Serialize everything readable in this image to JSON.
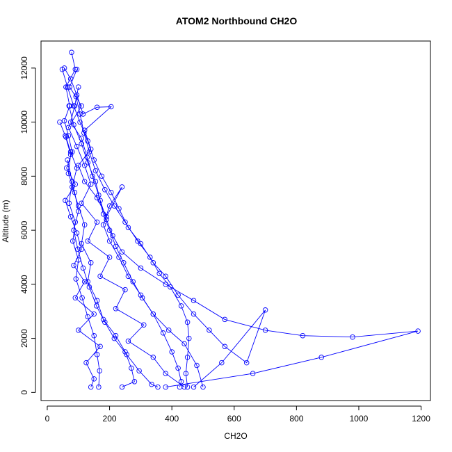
{
  "chart_data": {
    "type": "line",
    "title": "ATOM2 Northbound CH2O",
    "xlabel": "CH2O",
    "ylabel": "Altitude (m)",
    "xlim": [
      -20,
      1230
    ],
    "ylim": [
      -300,
      13000
    ],
    "xticks": [
      0,
      200,
      400,
      600,
      800,
      1000,
      1200
    ],
    "yticks": [
      0,
      2000,
      4000,
      6000,
      8000,
      10000,
      12000
    ],
    "grid": false,
    "legend": "none",
    "color": "#0000ff",
    "marker": "open-circle",
    "series": [
      {
        "values": [
          [
            78,
            12580
          ],
          [
            90,
            11950
          ],
          [
            60,
            11300
          ],
          [
            72,
            10600
          ],
          [
            55,
            10050
          ],
          [
            68,
            9500
          ],
          [
            80,
            8900
          ],
          [
            62,
            8300
          ],
          [
            90,
            7700
          ],
          [
            58,
            7100
          ],
          [
            75,
            6500
          ],
          [
            95,
            5900
          ],
          [
            110,
            5300
          ],
          [
            85,
            4700
          ],
          [
            120,
            4100
          ],
          [
            90,
            3500
          ],
          [
            150,
            2900
          ],
          [
            100,
            2300
          ],
          [
            170,
            1700
          ],
          [
            125,
            1100
          ],
          [
            150,
            500
          ],
          [
            140,
            200
          ]
        ]
      },
      {
        "values": [
          [
            95,
            11950
          ],
          [
            72,
            11300
          ],
          [
            110,
            10600
          ],
          [
            68,
            9800
          ],
          [
            95,
            9100
          ],
          [
            120,
            8400
          ],
          [
            140,
            7700
          ],
          [
            110,
            7000
          ],
          [
            160,
            6300
          ],
          [
            130,
            5600
          ],
          [
            200,
            5000
          ],
          [
            170,
            4300
          ],
          [
            250,
            3800
          ],
          [
            220,
            3100
          ],
          [
            310,
            2500
          ],
          [
            260,
            1900
          ],
          [
            340,
            1300
          ],
          [
            380,
            700
          ],
          [
            440,
            200
          ]
        ]
      },
      {
        "values": [
          [
            48,
            11950
          ],
          [
            65,
            11300
          ],
          [
            85,
            10600
          ],
          [
            105,
            10000
          ],
          [
            130,
            9300
          ],
          [
            150,
            8600
          ],
          [
            175,
            8000
          ],
          [
            205,
            7400
          ],
          [
            230,
            6800
          ],
          [
            260,
            6100
          ],
          [
            300,
            5500
          ],
          [
            340,
            4800
          ],
          [
            380,
            4300
          ],
          [
            420,
            3600
          ],
          [
            470,
            2900
          ],
          [
            520,
            2300
          ],
          [
            570,
            1700
          ],
          [
            640,
            1100
          ],
          [
            700,
            3050
          ],
          [
            560,
            1100
          ],
          [
            470,
            200
          ]
        ]
      },
      {
        "values": [
          [
            70,
            10600
          ],
          [
            85,
            9900
          ],
          [
            110,
            9200
          ],
          [
            130,
            8500
          ],
          [
            155,
            7800
          ],
          [
            170,
            7100
          ],
          [
            190,
            6400
          ],
          [
            210,
            5800
          ],
          [
            240,
            5200
          ],
          [
            300,
            4600
          ],
          [
            380,
            4000
          ],
          [
            470,
            3400
          ],
          [
            570,
            2700
          ],
          [
            700,
            2300
          ],
          [
            820,
            2100
          ],
          [
            980,
            2050
          ],
          [
            1190,
            2270
          ],
          [
            880,
            1300
          ],
          [
            660,
            700
          ],
          [
            380,
            200
          ]
        ]
      },
      {
        "values": [
          [
            55,
            12000
          ],
          [
            75,
            11600
          ],
          [
            95,
            11000
          ],
          [
            115,
            10300
          ],
          [
            160,
            10550
          ],
          [
            205,
            10570
          ],
          [
            120,
            9700
          ],
          [
            140,
            9000
          ],
          [
            100,
            8400
          ],
          [
            120,
            7800
          ],
          [
            160,
            7200
          ],
          [
            190,
            6500
          ],
          [
            240,
            7600
          ],
          [
            200,
            6900
          ],
          [
            180,
            6200
          ],
          [
            200,
            5600
          ],
          [
            230,
            5000
          ],
          [
            260,
            4300
          ],
          [
            300,
            3600
          ],
          [
            340,
            2900
          ],
          [
            390,
            2300
          ],
          [
            440,
            1800
          ],
          [
            480,
            1000
          ],
          [
            500,
            200
          ]
        ]
      },
      {
        "values": [
          [
            60,
            9450
          ],
          [
            75,
            8900
          ],
          [
            95,
            8300
          ],
          [
            80,
            7600
          ],
          [
            100,
            6900
          ],
          [
            120,
            6200
          ],
          [
            110,
            5500
          ],
          [
            140,
            4800
          ],
          [
            130,
            4100
          ],
          [
            160,
            3400
          ],
          [
            180,
            2700
          ],
          [
            220,
            2100
          ],
          [
            250,
            1500
          ],
          [
            270,
            900
          ],
          [
            280,
            400
          ],
          [
            240,
            200
          ]
        ]
      },
      {
        "values": [
          [
            92,
            10950
          ],
          [
            105,
            10300
          ],
          [
            118,
            9600
          ],
          [
            135,
            8900
          ],
          [
            155,
            8200
          ],
          [
            185,
            7500
          ],
          [
            215,
            6900
          ],
          [
            250,
            6300
          ],
          [
            290,
            5600
          ],
          [
            330,
            5000
          ],
          [
            360,
            4400
          ],
          [
            395,
            3900
          ],
          [
            430,
            3200
          ],
          [
            450,
            2600
          ],
          [
            455,
            2000
          ],
          [
            450,
            1300
          ],
          [
            445,
            700
          ],
          [
            450,
            200
          ]
        ]
      },
      {
        "values": [
          [
            40,
            10000
          ],
          [
            58,
            9500
          ],
          [
            75,
            8800
          ],
          [
            68,
            8100
          ],
          [
            88,
            7400
          ],
          [
            100,
            6700
          ],
          [
            85,
            6000
          ],
          [
            98,
            5300
          ],
          [
            115,
            4600
          ],
          [
            135,
            3900
          ],
          [
            158,
            3200
          ],
          [
            185,
            2600
          ],
          [
            215,
            2000
          ],
          [
            255,
            1400
          ],
          [
            295,
            800
          ],
          [
            335,
            300
          ],
          [
            355,
            200
          ]
        ]
      },
      {
        "values": [
          [
            100,
            11300
          ],
          [
            88,
            10600
          ],
          [
            75,
            10000
          ],
          [
            110,
            9400
          ],
          [
            128,
            8700
          ],
          [
            145,
            8000
          ],
          [
            165,
            7300
          ],
          [
            180,
            6600
          ],
          [
            200,
            6000
          ],
          [
            220,
            5400
          ],
          [
            245,
            4800
          ],
          [
            275,
            4100
          ],
          [
            305,
            3500
          ],
          [
            340,
            2900
          ],
          [
            372,
            2200
          ],
          [
            400,
            1500
          ],
          [
            420,
            900
          ],
          [
            430,
            400
          ],
          [
            425,
            200
          ]
        ]
      },
      {
        "values": [
          [
            65,
            8600
          ],
          [
            80,
            7800
          ],
          [
            70,
            7000
          ],
          [
            90,
            6300
          ],
          [
            82,
            5600
          ],
          [
            100,
            4900
          ],
          [
            92,
            4200
          ],
          [
            112,
            3500
          ],
          [
            130,
            2800
          ],
          [
            150,
            2100
          ],
          [
            160,
            1400
          ],
          [
            168,
            800
          ],
          [
            165,
            200
          ]
        ]
      }
    ]
  }
}
